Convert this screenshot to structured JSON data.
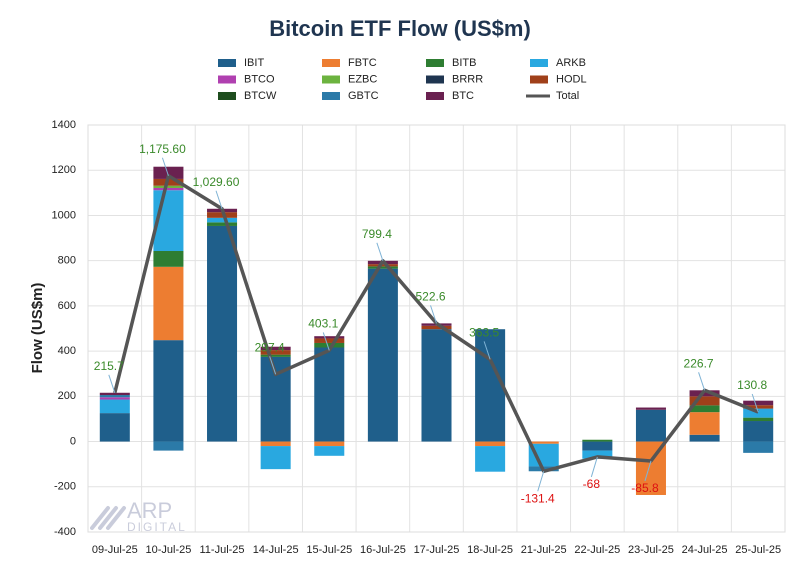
{
  "chart_data": {
    "type": "bar",
    "stacked": true,
    "title": "Bitcoin ETF Flow (US$m)",
    "y_label": "Flow (US$m)",
    "watermark": {
      "brand": "ARP",
      "sub": "DIGITAL"
    },
    "categories": [
      "09-Jul-25",
      "10-Jul-25",
      "11-Jul-25",
      "14-Jul-25",
      "15-Jul-25",
      "16-Jul-25",
      "17-Jul-25",
      "18-Jul-25",
      "21-Jul-25",
      "22-Jul-25",
      "23-Jul-25",
      "24-Jul-25",
      "25-Jul-25"
    ],
    "ylim": [
      -400,
      1400
    ],
    "yticks": [
      -400,
      -200,
      0,
      200,
      400,
      600,
      800,
      1000,
      1200,
      1400
    ],
    "grid": true,
    "legend": "top",
    "series": [
      {
        "name": "IBIT",
        "color": "#1f5f8b",
        "values": [
          125.8,
          448.5,
          953.5,
          374.4,
          416,
          764.7,
          497,
          496.8,
          0,
          -40,
          140.5,
          30,
          90.8
        ]
      },
      {
        "name": "FBTC",
        "color": "#ed7d31",
        "values": [
          0,
          324.3,
          0,
          -20,
          -20,
          0,
          0,
          -20,
          -10,
          0,
          -236.3,
          100,
          0
        ]
      },
      {
        "name": "BITB",
        "color": "#2e7d32",
        "values": [
          0,
          70,
          16,
          10,
          20,
          10,
          0,
          0,
          0,
          8,
          0,
          30,
          15
        ]
      },
      {
        "name": "ARKB",
        "color": "#29a8e0",
        "values": [
          60,
          268.7,
          20,
          -102,
          -43,
          0,
          0,
          -113.3,
          -100,
          -36,
          0,
          0,
          40
        ]
      },
      {
        "name": "BTCO",
        "color": "#b040b0",
        "values": [
          10,
          10,
          0,
          0,
          0,
          0,
          0,
          0,
          0,
          0,
          0,
          0,
          0
        ]
      },
      {
        "name": "EZBC",
        "color": "#6cb33f",
        "values": [
          0,
          10,
          0,
          0,
          0,
          0,
          0,
          0,
          0,
          0,
          0,
          0,
          0
        ]
      },
      {
        "name": "BRRR",
        "color": "#1f3550",
        "values": [
          0,
          0,
          0,
          0,
          0,
          0,
          0,
          0,
          0,
          0,
          0,
          0,
          0
        ]
      },
      {
        "name": "HODL",
        "color": "#a0401a",
        "values": [
          0,
          30,
          25,
          20,
          20,
          10,
          15,
          0,
          0,
          0,
          0,
          40,
          15
        ]
      },
      {
        "name": "BTCW",
        "color": "#1e4d1e",
        "values": [
          0,
          0,
          0,
          0,
          0,
          0,
          0,
          0,
          0,
          0,
          0,
          0,
          0
        ]
      },
      {
        "name": "GBTC",
        "color": "#2b7aa8",
        "values": [
          10,
          -40,
          0,
          0,
          0,
          0,
          0,
          0,
          -21.4,
          0,
          0,
          0,
          -50
        ]
      },
      {
        "name": "BTC",
        "color": "#6a2150",
        "values": [
          10,
          54,
          15,
          15,
          10,
          14.7,
          10.6,
          0,
          0,
          0,
          10,
          26.7,
          20
        ]
      },
      {
        "name": "Total",
        "type": "line",
        "color": "#555555",
        "values": [
          215.7,
          1175.6,
          1029.6,
          297.4,
          403.1,
          799.4,
          522.6,
          363.5,
          -131.4,
          -68,
          -85.8,
          226.7,
          130.8
        ],
        "value_labels": [
          "215.7",
          "1,175.60",
          "1,029.60",
          "297.4",
          "403.1",
          "799.4",
          "522.6",
          "363.5",
          "-131.4",
          "-68",
          "-85.8",
          "226.7",
          "130.8"
        ]
      }
    ]
  }
}
